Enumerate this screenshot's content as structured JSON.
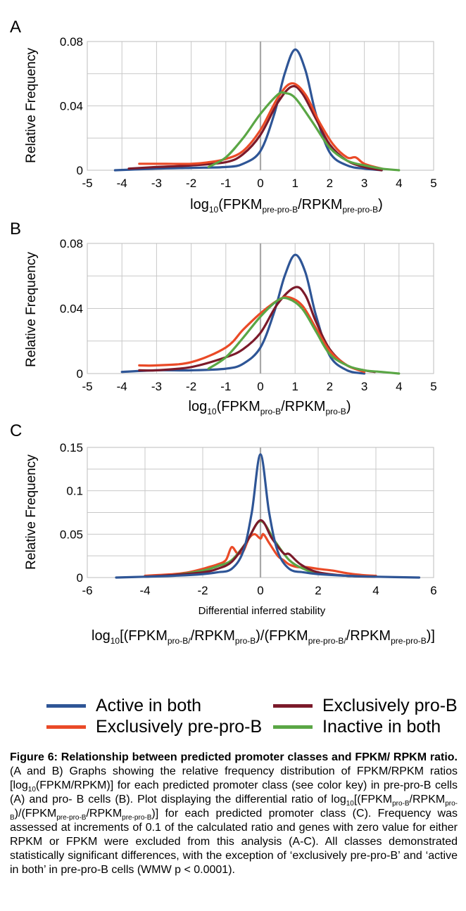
{
  "colors": {
    "active": "#2e5596",
    "pre": "#ea4a27",
    "pro": "#7b1a2a",
    "inactive": "#5aa645"
  },
  "legend": [
    {
      "name": "Active in both",
      "color": "#2e5596"
    },
    {
      "name": "Exclusively pro-B",
      "color": "#7b1a2a"
    },
    {
      "name": "Exclusively pre-pro-B",
      "color": "#ea4a27"
    },
    {
      "name": "Inactive in both",
      "color": "#5aa645"
    }
  ],
  "chart_data": [
    {
      "panel": "A",
      "type": "line",
      "ylabel": "Relative Frequency",
      "xlabel": {
        "base": "log",
        "base_sub": "10",
        "p1": "(FPKM",
        "sub1": "pre-pro-B",
        "p2": "/RPKM",
        "sub2": "pre-pro-B",
        "p3": ")"
      },
      "xlim": [
        -5,
        5
      ],
      "ylim": [
        0,
        0.08
      ],
      "xticks": [
        "-5",
        "-4",
        "-3",
        "-2",
        "-1",
        "0",
        "1",
        "2",
        "3",
        "4",
        "5"
      ],
      "yticks": [
        "0",
        "0.04",
        "0.08"
      ],
      "grid": true,
      "series": [
        {
          "color": "#2e5596",
          "points": [
            [
              -4.2,
              0
            ],
            [
              -3,
              0.001
            ],
            [
              -2,
              0.0015
            ],
            [
              -1,
              0.002
            ],
            [
              -0.5,
              0.004
            ],
            [
              0,
              0.012
            ],
            [
              0.4,
              0.035
            ],
            [
              0.7,
              0.06
            ],
            [
              1.0,
              0.075
            ],
            [
              1.3,
              0.062
            ],
            [
              1.6,
              0.035
            ],
            [
              2.0,
              0.011
            ],
            [
              2.5,
              0.003
            ],
            [
              3,
              0.001
            ],
            [
              3.5,
              0
            ]
          ]
        },
        {
          "color": "#7b1a2a",
          "points": [
            [
              -3.8,
              0.001
            ],
            [
              -3,
              0.002
            ],
            [
              -2,
              0.003
            ],
            [
              -1,
              0.005
            ],
            [
              -0.5,
              0.01
            ],
            [
              0,
              0.022
            ],
            [
              0.5,
              0.042
            ],
            [
              0.9,
              0.052
            ],
            [
              1.2,
              0.048
            ],
            [
              1.6,
              0.032
            ],
            [
              2.0,
              0.016
            ],
            [
              2.5,
              0.006
            ],
            [
              3,
              0.002
            ],
            [
              3.5,
              0
            ]
          ]
        },
        {
          "color": "#ea4a27",
          "points": [
            [
              -3.5,
              0.004
            ],
            [
              -3,
              0.004
            ],
            [
              -2,
              0.004
            ],
            [
              -1.5,
              0.005
            ],
            [
              -1,
              0.007
            ],
            [
              -0.5,
              0.012
            ],
            [
              0,
              0.025
            ],
            [
              0.5,
              0.045
            ],
            [
              0.9,
              0.054
            ],
            [
              1.3,
              0.047
            ],
            [
              1.7,
              0.03
            ],
            [
              2.1,
              0.016
            ],
            [
              2.5,
              0.008
            ],
            [
              2.75,
              0.008
            ],
            [
              3.0,
              0.004
            ],
            [
              3.5,
              0.001
            ]
          ]
        },
        {
          "color": "#5aa645",
          "points": [
            [
              -1.5,
              0.002
            ],
            [
              -1,
              0.008
            ],
            [
              -0.5,
              0.02
            ],
            [
              0,
              0.035
            ],
            [
              0.5,
              0.047
            ],
            [
              0.7,
              0.048
            ],
            [
              1.0,
              0.045
            ],
            [
              1.5,
              0.03
            ],
            [
              2.0,
              0.014
            ],
            [
              2.5,
              0.006
            ],
            [
              3,
              0.003
            ],
            [
              3.5,
              0.001
            ],
            [
              4,
              0
            ]
          ]
        }
      ]
    },
    {
      "panel": "B",
      "type": "line",
      "ylabel": "Relative Frequency",
      "xlabel": {
        "base": "log",
        "base_sub": "10",
        "p1": "(FPKM",
        "sub1": "pro-B",
        "p2": "/RPKM",
        "sub2": "pro-B",
        "p3": ")"
      },
      "xlim": [
        -5,
        5
      ],
      "ylim": [
        0,
        0.08
      ],
      "xticks": [
        "-5",
        "-4",
        "-3",
        "-2",
        "-1",
        "0",
        "1",
        "2",
        "3",
        "4",
        "5"
      ],
      "yticks": [
        "0",
        "0.04",
        "0.08"
      ],
      "grid": true,
      "series": [
        {
          "color": "#2e5596",
          "points": [
            [
              -4,
              0.001
            ],
            [
              -3,
              0.002
            ],
            [
              -2,
              0.002
            ],
            [
              -1,
              0.003
            ],
            [
              -0.5,
              0.006
            ],
            [
              0,
              0.016
            ],
            [
              0.4,
              0.038
            ],
            [
              0.7,
              0.06
            ],
            [
              1.0,
              0.073
            ],
            [
              1.3,
              0.062
            ],
            [
              1.6,
              0.036
            ],
            [
              2.0,
              0.011
            ],
            [
              2.5,
              0.002
            ],
            [
              3,
              0
            ]
          ]
        },
        {
          "color": "#7b1a2a",
          "points": [
            [
              -3.5,
              0.002
            ],
            [
              -3,
              0.002
            ],
            [
              -2,
              0.004
            ],
            [
              -1,
              0.01
            ],
            [
              -0.5,
              0.015
            ],
            [
              0,
              0.025
            ],
            [
              0.5,
              0.043
            ],
            [
              1.0,
              0.053
            ],
            [
              1.3,
              0.048
            ],
            [
              1.6,
              0.032
            ],
            [
              2.0,
              0.015
            ],
            [
              2.5,
              0.005
            ],
            [
              3,
              0.002
            ],
            [
              3.3,
              0.001
            ]
          ]
        },
        {
          "color": "#ea4a27",
          "points": [
            [
              -3.5,
              0.005
            ],
            [
              -3,
              0.005
            ],
            [
              -2,
              0.007
            ],
            [
              -1,
              0.016
            ],
            [
              -0.5,
              0.027
            ],
            [
              0,
              0.037
            ],
            [
              0.5,
              0.045
            ],
            [
              0.8,
              0.047
            ],
            [
              1.2,
              0.042
            ],
            [
              1.6,
              0.028
            ],
            [
              2.0,
              0.014
            ],
            [
              2.5,
              0.005
            ],
            [
              3,
              0.001
            ]
          ]
        },
        {
          "color": "#5aa645",
          "points": [
            [
              -1.5,
              0.003
            ],
            [
              -1,
              0.01
            ],
            [
              -0.5,
              0.022
            ],
            [
              0,
              0.035
            ],
            [
              0.5,
              0.045
            ],
            [
              0.8,
              0.046
            ],
            [
              1.2,
              0.04
            ],
            [
              1.6,
              0.026
            ],
            [
              2.0,
              0.012
            ],
            [
              2.5,
              0.005
            ],
            [
              3,
              0.002
            ],
            [
              3.5,
              0.001
            ],
            [
              4,
              0
            ]
          ]
        }
      ]
    },
    {
      "panel": "C",
      "type": "line",
      "ylabel": "Relative Frequency",
      "subtitle": "Differential inferred stability",
      "xlabel": {
        "base": "log",
        "base_sub": "10",
        "p1": "[(FPKM",
        "sub1": "pro-B/",
        "p2": "/RPKM",
        "sub2": "pro-B",
        "p3": ")/(FPKM",
        "sub3": "pre-pro-B/",
        "p4": "/RPKM",
        "sub4": "pre-pro-B",
        "p5": ")]"
      },
      "xlim": [
        -6,
        6
      ],
      "ylim": [
        0,
        0.15
      ],
      "xticks": [
        "-6",
        "-4",
        "-2",
        "0",
        "2",
        "4",
        "6"
      ],
      "yticks": [
        "0",
        "0.05",
        "0.1",
        "0.15"
      ],
      "grid": true,
      "series": [
        {
          "color": "#ea4a27",
          "points": [
            [
              -4,
              0.002
            ],
            [
              -3.5,
              0.003
            ],
            [
              -3,
              0.004
            ],
            [
              -2.5,
              0.006
            ],
            [
              -2,
              0.01
            ],
            [
              -1.8,
              0.012
            ],
            [
              -1.5,
              0.015
            ],
            [
              -1.2,
              0.02
            ],
            [
              -1.0,
              0.035
            ],
            [
              -0.8,
              0.028
            ],
            [
              -0.6,
              0.03
            ],
            [
              -0.4,
              0.045
            ],
            [
              -0.2,
              0.05
            ],
            [
              0,
              0.045
            ],
            [
              0.1,
              0.05
            ],
            [
              0.3,
              0.04
            ],
            [
              0.6,
              0.025
            ],
            [
              0.8,
              0.02
            ],
            [
              1.0,
              0.015
            ],
            [
              1.3,
              0.012
            ],
            [
              1.6,
              0.012
            ],
            [
              2.0,
              0.01
            ],
            [
              2.5,
              0.008
            ],
            [
              3,
              0.005
            ],
            [
              3.5,
              0.003
            ],
            [
              4,
              0.002
            ]
          ]
        },
        {
          "color": "#5aa645",
          "points": [
            [
              -4,
              0.001
            ],
            [
              -3,
              0.003
            ],
            [
              -2,
              0.008
            ],
            [
              -1.5,
              0.013
            ],
            [
              -1,
              0.02
            ],
            [
              -0.5,
              0.04
            ],
            [
              0,
              0.065
            ],
            [
              0.5,
              0.042
            ],
            [
              1.0,
              0.02
            ],
            [
              1.5,
              0.01
            ],
            [
              2,
              0.005
            ],
            [
              3,
              0.002
            ],
            [
              4,
              0.001
            ]
          ]
        },
        {
          "color": "#7b1a2a",
          "points": [
            [
              -4,
              0.001
            ],
            [
              -3,
              0.003
            ],
            [
              -2,
              0.006
            ],
            [
              -1.5,
              0.01
            ],
            [
              -1,
              0.018
            ],
            [
              -0.5,
              0.04
            ],
            [
              0,
              0.066
            ],
            [
              0.4,
              0.045
            ],
            [
              0.8,
              0.028
            ],
            [
              1.0,
              0.027
            ],
            [
              1.4,
              0.015
            ],
            [
              2,
              0.006
            ],
            [
              3,
              0.002
            ],
            [
              4,
              0.001
            ]
          ]
        },
        {
          "color": "#2e5596",
          "points": [
            [
              -5,
              0
            ],
            [
              -4,
              0.001
            ],
            [
              -3,
              0.002
            ],
            [
              -2,
              0.004
            ],
            [
              -1.5,
              0.006
            ],
            [
              -1,
              0.01
            ],
            [
              -0.6,
              0.03
            ],
            [
              -0.3,
              0.075
            ],
            [
              0,
              0.142
            ],
            [
              0.3,
              0.075
            ],
            [
              0.6,
              0.03
            ],
            [
              1.0,
              0.01
            ],
            [
              1.5,
              0.006
            ],
            [
              2,
              0.004
            ],
            [
              3,
              0.002
            ],
            [
              4,
              0.001
            ],
            [
              5.5,
              0
            ]
          ]
        }
      ]
    }
  ],
  "caption": {
    "title": "Figure 6: Relationship between predicted promoter classes and FPKM/ RPKM ratio.",
    "t1": " (A and B) Graphs showing the relative frequency distribution of FPKM/RPKM ratios [log",
    "s1": "10",
    "t2": "(FPKM/RPKM)] for each predicted promoter class (see color key) in pre-pro-B cells (A) and pro- B cells (B). Plot displaying the differential ratio of log",
    "s2": "10",
    "t3": "[(FPKM",
    "s3": "pro-B",
    "t4": "/RPKM",
    "s4": "pro-B",
    "t5": ")/(FPKM",
    "s5": "pre-pro-B",
    "t6": "/RPKM",
    "s6": "pre-pro-B",
    "t7": ")] for each predicted promoter class (C). Frequency was assessed at increments of 0.1 of the calculated ratio and genes with zero value for either RPKM or FPKM were excluded from this analysis (A-C). All classes demonstrated statistically significant differences, with the exception of ‘exclusively pre-pro-B’ and ‘active in both’ in pre-pro-B cells (WMW p < 0.0001)."
  }
}
